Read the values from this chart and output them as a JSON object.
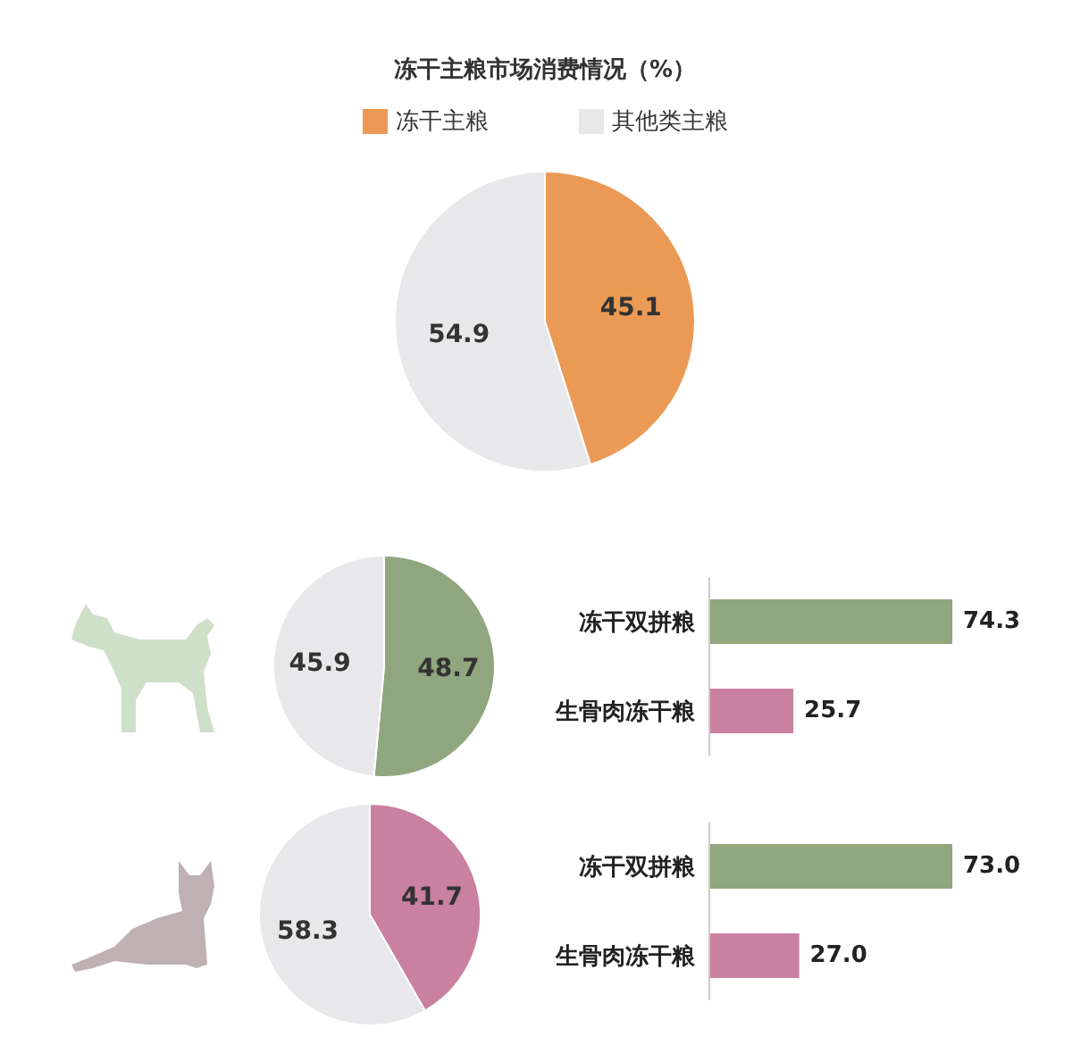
{
  "chart_data": [
    {
      "type": "pie",
      "title": "冻干主粮市场消费情况（%）",
      "categories": [
        "冻干主粮",
        "其他类主粮"
      ],
      "values": [
        45.1,
        54.9
      ],
      "colors": [
        "#eb9a55",
        "#e8e8ea"
      ],
      "legend": "top",
      "data_labels": true
    },
    {
      "type": "pie",
      "categories": [
        null,
        null
      ],
      "values": [
        48.7,
        45.9
      ],
      "colors": [
        "#8fa67e",
        "#e8e8ea"
      ],
      "data_labels": true
    },
    {
      "type": "bar",
      "orientation": "horizontal",
      "categories": [
        "冻干双拼粮",
        "生骨肉冻干粮"
      ],
      "values": [
        74.3,
        25.7
      ],
      "colors": [
        "#8fa67e",
        "#c9819f"
      ],
      "data_labels": true
    },
    {
      "type": "pie",
      "categories": [
        null,
        null
      ],
      "values": [
        41.7,
        58.3
      ],
      "colors": [
        "#c9819f",
        "#e8e8ea"
      ],
      "data_labels": true
    },
    {
      "type": "bar",
      "orientation": "horizontal",
      "categories": [
        "冻干双拼粮",
        "生骨肉冻干粮"
      ],
      "values": [
        73,
        27
      ],
      "value_labels": [
        "73.0",
        "27.0"
      ],
      "colors": [
        "#8fa67e",
        "#c9819f"
      ]
    }
  ]
}
